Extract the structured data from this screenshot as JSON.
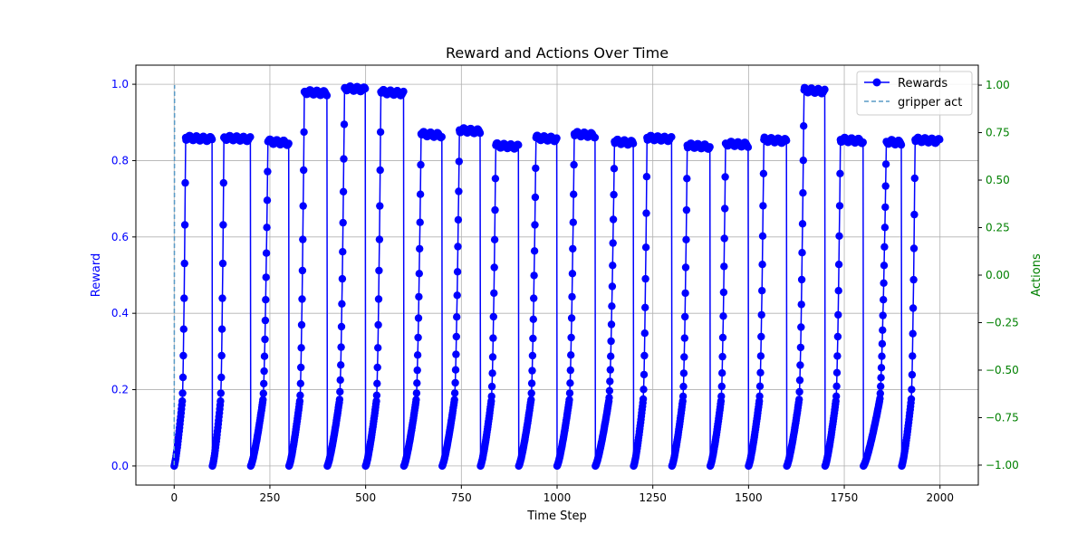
{
  "chart_data": {
    "type": "line",
    "title": "Reward and Actions Over Time",
    "xlabel": "Time Step",
    "ylabel": "Reward",
    "y2label": "Actions",
    "xlim": [
      -100,
      2100
    ],
    "ylim": [
      -0.05,
      1.05
    ],
    "y2lim": [
      -1.105,
      1.105
    ],
    "x_ticks": [
      0,
      250,
      500,
      750,
      1000,
      1250,
      1500,
      1750,
      2000
    ],
    "y_ticks": [
      0.0,
      0.2,
      0.4,
      0.6,
      0.8,
      1.0
    ],
    "y2_ticks": [
      -1.0,
      -0.75,
      -0.5,
      -0.25,
      0.0,
      0.25,
      0.5,
      0.75,
      1.0
    ],
    "grid": true,
    "legend": "top-right",
    "colors": {
      "rewards": "#0000ff",
      "gripper": "#5a9bc6",
      "left_axis": "#0000ff",
      "right_axis": "#008000"
    },
    "series": [
      {
        "name": "Rewards",
        "axis": "left",
        "style": "line-marker",
        "episodes": [
          {
            "start": 0,
            "ramp_end": 30,
            "plateau": 0.86,
            "end": 99
          },
          {
            "start": 100,
            "ramp_end": 130,
            "plateau": 0.86,
            "end": 199
          },
          {
            "start": 200,
            "ramp_end": 245,
            "plateau": 0.85,
            "end": 299
          },
          {
            "start": 300,
            "ramp_end": 340,
            "plateau": 0.98,
            "end": 399
          },
          {
            "start": 400,
            "ramp_end": 445,
            "plateau": 0.99,
            "end": 499
          },
          {
            "start": 500,
            "ramp_end": 540,
            "plateau": 0.98,
            "end": 599
          },
          {
            "start": 600,
            "ramp_end": 645,
            "plateau": 0.87,
            "end": 699
          },
          {
            "start": 700,
            "ramp_end": 745,
            "plateau": 0.88,
            "end": 799
          },
          {
            "start": 800,
            "ramp_end": 840,
            "plateau": 0.84,
            "end": 899
          },
          {
            "start": 900,
            "ramp_end": 945,
            "plateau": 0.86,
            "end": 999
          },
          {
            "start": 1000,
            "ramp_end": 1045,
            "plateau": 0.87,
            "end": 1099
          },
          {
            "start": 1100,
            "ramp_end": 1150,
            "plateau": 0.85,
            "end": 1199
          },
          {
            "start": 1200,
            "ramp_end": 1235,
            "plateau": 0.86,
            "end": 1299
          },
          {
            "start": 1300,
            "ramp_end": 1340,
            "plateau": 0.84,
            "end": 1399
          },
          {
            "start": 1400,
            "ramp_end": 1440,
            "plateau": 0.845,
            "end": 1499
          },
          {
            "start": 1500,
            "ramp_end": 1540,
            "plateau": 0.855,
            "end": 1599
          },
          {
            "start": 1600,
            "ramp_end": 1645,
            "plateau": 0.985,
            "end": 1699
          },
          {
            "start": 1700,
            "ramp_end": 1740,
            "plateau": 0.855,
            "end": 1799
          },
          {
            "start": 1800,
            "ramp_end": 1860,
            "plateau": 0.85,
            "end": 1899
          },
          {
            "start": 1900,
            "ramp_end": 1935,
            "plateau": 0.855,
            "end": 1999
          }
        ]
      },
      {
        "name": "gripper act",
        "axis": "right",
        "style": "dashed",
        "x": [
          0,
          1
        ],
        "y": [
          -1.0,
          1.0
        ]
      }
    ]
  }
}
